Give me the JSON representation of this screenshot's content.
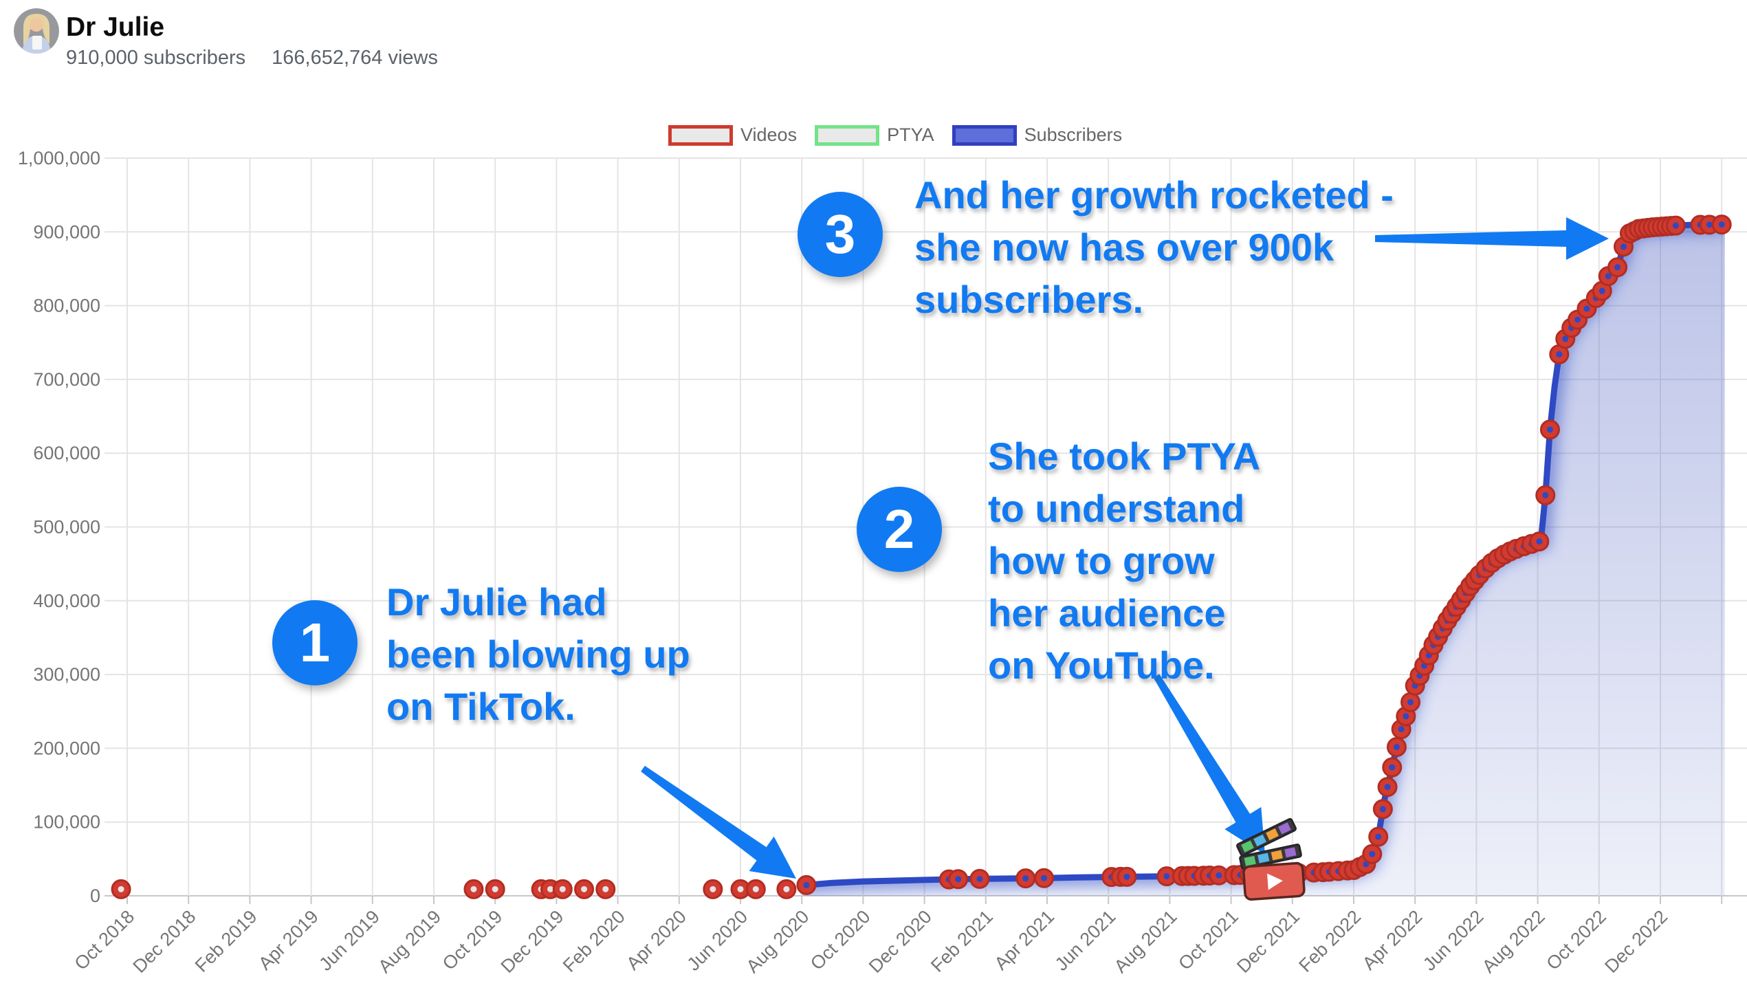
{
  "header": {
    "channel_name": "Dr Julie",
    "subscribers": "910,000 subscribers",
    "views": "166,652,764 views",
    "avatar_icon": "channel-avatar"
  },
  "legend": {
    "items": [
      {
        "label": "Videos",
        "swatch_icon": "red-outline-swatch",
        "border": "#cf3a2e",
        "fill": "#e9e9e9"
      },
      {
        "label": "PTYA",
        "swatch_icon": "green-outline-swatch",
        "border": "#74e388",
        "fill": "#e9e9e9"
      },
      {
        "label": "Subscribers",
        "swatch_icon": "blue-filled-swatch",
        "border": "#3040bf",
        "fill": "#5d6fd8"
      }
    ]
  },
  "annotations": [
    {
      "number": "1",
      "text": "Dr Julie had\nbeen blowing up\non TikTok."
    },
    {
      "number": "2",
      "text": "She took PTYA\nto understand\nhow to grow\nher audience\non YouTube."
    },
    {
      "number": "3",
      "text": "And her growth rocketed -\nshe now has over 900k\nsubscribers."
    }
  ],
  "colors": {
    "annotation_blue": "#117af2",
    "line_blue": "#2e49c4",
    "area_fill_rgb": "86,104,196",
    "video_red": "#d23b30",
    "video_red_stroke": "#b12d23",
    "pre_line_dot_center": "#e3e3e8",
    "grid": "#e4e4e4",
    "baseline": "#c7c7c7",
    "axis_text": "#757575"
  },
  "chart_data": {
    "type": "area",
    "title": "",
    "legend_position": "top-center",
    "grid": true,
    "y_axis": {
      "min": 0,
      "max": 1000000,
      "tick_step": 100000,
      "tick_labels": [
        "0",
        "100,000",
        "200,000",
        "300,000",
        "400,000",
        "500,000",
        "600,000",
        "700,000",
        "800,000",
        "900,000",
        "1,000,000"
      ]
    },
    "x_axis": {
      "unit": "month",
      "months_per_labeled_tick": 2,
      "tick_labels": [
        "Oct 2018",
        "Dec 2018",
        "Feb 2019",
        "Apr 2019",
        "Jun 2019",
        "Aug 2019",
        "Oct 2019",
        "Dec 2019",
        "Feb 2020",
        "Apr 2020",
        "Jun 2020",
        "Aug 2020",
        "Oct 2020",
        "Dec 2020",
        "Feb 2021",
        "Apr 2021",
        "Jun 2021",
        "Aug 2021",
        "Oct 2021",
        "Dec 2021",
        "Feb 2022",
        "Apr 2022",
        "Jun 2022",
        "Aug 2022",
        "Oct 2022",
        "Dec 2022"
      ]
    },
    "series": [
      {
        "name": "Subscribers",
        "kind": "line-area",
        "points_month_value": [
          [
            22.0,
            14000
          ],
          [
            23,
            17500
          ],
          [
            24,
            19500
          ],
          [
            25,
            20500
          ],
          [
            26,
            21500
          ],
          [
            27,
            22500
          ],
          [
            28,
            23000
          ],
          [
            29,
            23500
          ],
          [
            30,
            24000
          ],
          [
            31,
            25000
          ],
          [
            32,
            25500
          ],
          [
            33,
            26000
          ],
          [
            34,
            26500
          ],
          [
            35,
            27200
          ],
          [
            36,
            28000
          ],
          [
            37,
            29000
          ],
          [
            37.4,
            29500
          ],
          [
            38,
            30500
          ],
          [
            39,
            32000
          ],
          [
            40,
            35000
          ],
          [
            40.5,
            45000
          ],
          [
            40.8,
            80000
          ],
          [
            41,
            130000
          ],
          [
            41.2,
            165000
          ],
          [
            41.5,
            220000
          ],
          [
            41.8,
            255000
          ],
          [
            42,
            285000
          ],
          [
            42.3,
            312000
          ],
          [
            42.6,
            340000
          ],
          [
            43,
            370000
          ],
          [
            43.4,
            395000
          ],
          [
            43.8,
            420000
          ],
          [
            44.2,
            440000
          ],
          [
            44.6,
            455000
          ],
          [
            45,
            465000
          ],
          [
            45.4,
            472000
          ],
          [
            45.8,
            477000
          ],
          [
            46.1,
            481000
          ],
          [
            46.25,
            543000
          ],
          [
            46.4,
            632000
          ],
          [
            46.55,
            690000
          ],
          [
            46.7,
            734000
          ],
          [
            46.9,
            755000
          ],
          [
            47.1,
            770000
          ],
          [
            47.3,
            781000
          ],
          [
            47.6,
            796000
          ],
          [
            48.1,
            820000
          ],
          [
            48.3,
            840000
          ],
          [
            48.6,
            852000
          ],
          [
            48.8,
            880000
          ],
          [
            49.0,
            898000
          ],
          [
            49.3,
            904000
          ],
          [
            49.7,
            906000
          ],
          [
            50.0,
            907000
          ],
          [
            50.5,
            908500
          ],
          [
            51.0,
            909500
          ],
          [
            52.1,
            910000
          ]
        ]
      },
      {
        "name": "Videos",
        "kind": "event-markers",
        "pre_line_value": 9000,
        "pre_line_months": [
          -0.2,
          11.3,
          12.0,
          13.5,
          13.8,
          14.2,
          14.9,
          15.6,
          19.1,
          20.0,
          20.5,
          21.5
        ],
        "on_line_months": [
          22.15,
          26.8,
          27.1,
          27.8,
          29.3,
          29.9,
          32.1,
          32.4,
          32.6,
          33.9,
          34.4,
          34.6,
          34.8,
          35.1,
          35.3,
          35.6,
          36.1,
          36.3,
          36.6,
          36.9,
          38.2,
          38.7,
          39.0,
          39.2,
          39.5,
          39.8,
          40.0,
          40.2,
          40.4,
          40.6,
          40.8,
          40.95,
          41.1,
          41.25,
          41.4,
          41.55,
          41.7,
          41.85,
          42.0,
          42.15,
          42.3,
          42.45,
          42.6,
          42.75,
          42.9,
          43.05,
          43.2,
          43.35,
          43.5,
          43.65,
          43.8,
          43.95,
          44.1,
          44.3,
          44.5,
          44.7,
          44.9,
          45.1,
          45.3,
          45.55,
          45.8,
          46.05,
          46.25,
          46.4,
          46.7,
          46.9,
          47.1,
          47.3,
          47.6,
          47.9,
          48.1,
          48.3,
          48.6,
          48.8,
          49.0,
          49.15,
          49.3,
          49.45,
          49.6,
          49.75,
          49.9,
          50.05,
          50.2,
          50.35,
          50.5,
          51.3,
          51.6,
          52.0
        ]
      },
      {
        "name": "PTYA",
        "kind": "event-markers",
        "event_months": [
          37.4
        ],
        "icon": "clapperboard-icon"
      }
    ]
  }
}
